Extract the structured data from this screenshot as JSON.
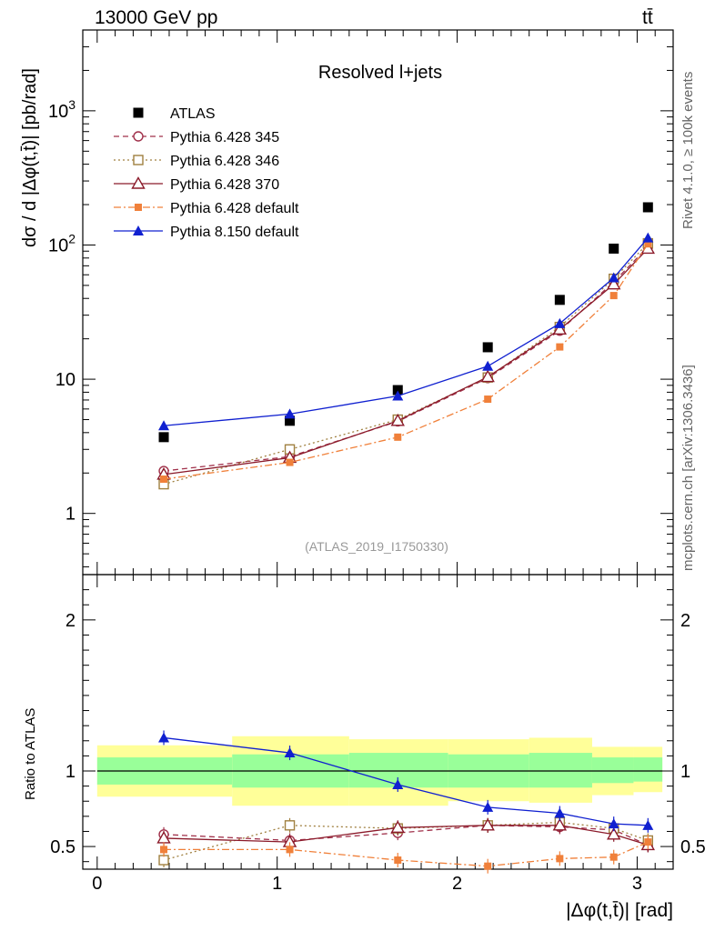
{
  "header": {
    "left": "13000 GeV pp",
    "right": "tt̄"
  },
  "side_labels": {
    "rivet": "Rivet 4.1.0, ≥ 100k events",
    "source": "mcplots.cern.ch [arXiv:1306.3436]"
  },
  "colors": {
    "atlas": "#000000",
    "py345": "#a0304a",
    "py346": "#a08040",
    "py370": "#8b1a2a",
    "py6def": "#f0803a",
    "py8": "#1020d0",
    "band_inner": "#99ff99",
    "band_outer": "#ffff99"
  },
  "chart_data": [
    {
      "type": "line",
      "title": "Resolved l+jets",
      "watermark": "(ATLAS_2019_I1750330)",
      "ylabel": "dσ / d |Δφ(t,t̄)| [pb/rad]",
      "yscale": "log",
      "ylim": [
        0.35,
        4000
      ],
      "xlim": [
        -0.08,
        3.2
      ],
      "y_tick_labels": [
        "1",
        "10",
        "10²",
        "10³"
      ],
      "x": [
        0.37,
        1.07,
        1.67,
        2.17,
        2.57,
        2.87,
        3.06
      ],
      "series": [
        {
          "name": "ATLAS",
          "marker": "square",
          "values": [
            3.7,
            4.9,
            8.3,
            17.3,
            39,
            94,
            191
          ]
        },
        {
          "name": "Pythia 6.428 345",
          "marker": "circle-open",
          "line": "dashed",
          "values": [
            2.07,
            2.65,
            4.85,
            10.2,
            23,
            53,
            97
          ]
        },
        {
          "name": "Pythia 6.428 346",
          "marker": "square-open",
          "line": "dotted",
          "values": [
            1.65,
            3.0,
            5.0,
            10.3,
            24.5,
            56,
            103
          ]
        },
        {
          "name": "Pythia 6.428 370",
          "marker": "triangle-open",
          "line": "solid",
          "values": [
            1.95,
            2.6,
            4.9,
            10.4,
            23.5,
            51,
            94
          ]
        },
        {
          "name": "Pythia 6.428 default",
          "marker": "square-small",
          "line": "dashdot",
          "values": [
            1.8,
            2.4,
            3.7,
            7.1,
            17.4,
            42,
            102
          ]
        },
        {
          "name": "Pythia 8.150 default",
          "marker": "triangle",
          "line": "solid",
          "values": [
            4.5,
            5.5,
            7.5,
            12.5,
            26,
            57,
            113
          ]
        }
      ]
    },
    {
      "type": "line",
      "title": "ratio",
      "ylabel": "Ratio to ATLAS",
      "xlabel": "|Δφ(t,t̄)| [rad]",
      "ylim": [
        0.35,
        2.3
      ],
      "xlim": [
        -0.08,
        3.2
      ],
      "y_ticks": [
        0.5,
        1,
        2
      ],
      "y_tick_labels": [
        "0.5",
        "1",
        "2"
      ],
      "x_ticks": [
        0,
        1,
        2,
        3
      ],
      "x_tick_labels": [
        "0",
        "1",
        "2",
        "3"
      ],
      "bins": [
        0,
        0.75,
        1.4,
        1.95,
        2.4,
        2.75,
        2.98,
        3.14
      ],
      "band_inner": [
        [
          0.91,
          1.09
        ],
        [
          0.89,
          1.11
        ],
        [
          0.89,
          1.12
        ],
        [
          0.89,
          1.11
        ],
        [
          0.89,
          1.12
        ],
        [
          0.92,
          1.09
        ],
        [
          0.93,
          1.09
        ]
      ],
      "band_outer": [
        [
          0.83,
          1.17
        ],
        [
          0.77,
          1.23
        ],
        [
          0.77,
          1.21
        ],
        [
          0.8,
          1.21
        ],
        [
          0.79,
          1.22
        ],
        [
          0.84,
          1.16
        ],
        [
          0.86,
          1.16
        ]
      ],
      "x": [
        0.37,
        1.07,
        1.67,
        2.17,
        2.57,
        2.87,
        3.06
      ],
      "series": [
        {
          "name": "Pythia 6.428 345",
          "values": [
            0.58,
            0.54,
            0.59,
            0.64,
            0.63,
            0.61,
            0.51
          ]
        },
        {
          "name": "Pythia 6.428 346",
          "values": [
            0.41,
            0.64,
            0.62,
            0.64,
            0.66,
            0.62,
            0.54
          ]
        },
        {
          "name": "Pythia 6.428 370",
          "values": [
            0.555,
            0.53,
            0.625,
            0.64,
            0.64,
            0.58,
            0.51
          ]
        },
        {
          "name": "Pythia 6.428 default",
          "values": [
            0.48,
            0.48,
            0.41,
            0.37,
            0.42,
            0.43,
            0.53
          ]
        },
        {
          "name": "Pythia 8.150 default",
          "values": [
            1.22,
            1.12,
            0.91,
            0.76,
            0.72,
            0.65,
            0.64
          ]
        }
      ]
    }
  ]
}
